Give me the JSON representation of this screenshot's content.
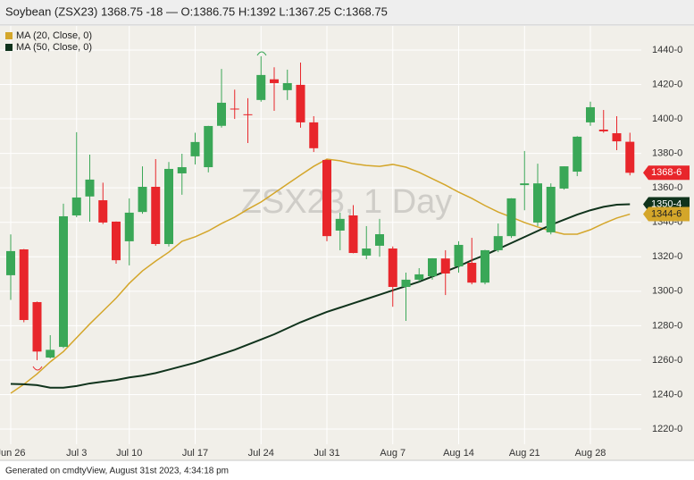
{
  "chart_data": {
    "type": "candlestick",
    "title": "Soybean (ZSX23) 1368.75 -18 — O:1386.75 H:1392 L:1367.25 C:1368.75",
    "watermark": "ZSX23, 1 Day",
    "footer": "Generated on cmdtyView, August 31st 2023, 4:34:18 pm",
    "categories": [
      "Jun 26",
      null,
      null,
      null,
      null,
      "Jul 3",
      null,
      null,
      null,
      "Jul 10",
      null,
      null,
      null,
      null,
      "Jul 17",
      null,
      null,
      null,
      null,
      "Jul 24",
      null,
      null,
      null,
      null,
      "Jul 31",
      null,
      null,
      null,
      null,
      "Aug 7",
      null,
      null,
      null,
      null,
      "Aug 14",
      null,
      null,
      null,
      null,
      "Aug 21",
      null,
      null,
      null,
      null,
      "Aug 28",
      null,
      null,
      null
    ],
    "open": [
      1309.3,
      1324.3,
      1293.7,
      1261.5,
      1267.7,
      1344,
      1355,
      1352.8,
      1340.4,
      1329,
      1346,
      1360.6,
      1327.4,
      1368.4,
      1378.3,
      1372,
      1396,
      1406,
      1402.7,
      1411,
      1423,
      1416.7,
      1419.8,
      1398,
      1376.2,
      1335.2,
      1344,
      1320.7,
      1326.4,
      1324.8,
      1302.5,
      1306.7,
      1308.7,
      1319,
      1314.4,
      1316.5,
      1305,
      1323.8,
      1332,
      1361.6,
      1339.9,
      1334.2,
      1359.6,
      1369.4,
      1398,
      1393.8,
      1391.7,
      1386.75
    ],
    "high": [
      1333,
      1324.5,
      1294,
      1274.5,
      1350.8,
      1392.3,
      1379.3,
      1363,
      1340.5,
      1353.9,
      1372.5,
      1376.7,
      1375,
      1379.8,
      1392,
      1396,
      1429,
      1417,
      1412,
      1436.4,
      1430,
      1428.6,
      1432.7,
      1401.6,
      1376.5,
      1345.6,
      1350,
      1337.8,
      1342,
      1326,
      1310.8,
      1313.4,
      1319.2,
      1323.8,
      1329,
      1331,
      1324,
      1339.3,
      1354,
      1381.4,
      1374,
      1362.6,
      1372.5,
      1390,
      1410,
      1405.2,
      1401.6,
      1392
    ],
    "low": [
      1295,
      1282,
      1260,
      1261,
      1267,
      1343,
      1340.4,
      1339,
      1316,
      1315,
      1345,
      1326.4,
      1326,
      1356,
      1373.6,
      1369,
      1395,
      1400,
      1386,
      1410,
      1404.7,
      1411,
      1394.9,
      1380.8,
      1329,
      1323.8,
      1322,
      1318.6,
      1320,
      1291,
      1282.8,
      1305.6,
      1306.7,
      1297.8,
      1310.8,
      1304,
      1304,
      1322.7,
      1331,
      1347,
      1337.8,
      1333,
      1359,
      1366.8,
      1396,
      1392,
      1381.9,
      1367.25
    ],
    "close": [
      1323.3,
      1283.3,
      1265,
      1266,
      1343.5,
      1354.4,
      1364.8,
      1339.9,
      1318,
      1345.6,
      1360.6,
      1327.4,
      1371,
      1372,
      1386.6,
      1395.9,
      1409.4,
      1405.5,
      1402.2,
      1425.5,
      1420.8,
      1420.8,
      1398,
      1383,
      1332,
      1342,
      1322.2,
      1324.8,
      1333.1,
      1302.5,
      1306.7,
      1309.8,
      1319.1,
      1310.3,
      1326.9,
      1305,
      1323.8,
      1332,
      1353.9,
      1362.6,
      1362.6,
      1360.6,
      1372.5,
      1389.7,
      1406.8,
      1392.8,
      1387,
      1368.75
    ],
    "up_color": "#3aa757",
    "down_color": "#e8262b",
    "close_label": "1368-6",
    "series": [
      {
        "name": "MA (20, Close, 0)",
        "color": "#d4a62a",
        "last_label": "1344-6",
        "values": [
          1240.8,
          1246,
          1252,
          1259,
          1265,
          1273,
          1281,
          1288.5,
          1296,
          1304.6,
          1311.8,
          1317.5,
          1322.7,
          1329,
          1331.6,
          1335,
          1339.3,
          1343,
          1347.6,
          1351.8,
          1357,
          1362.2,
          1367.4,
          1372.5,
          1376.7,
          1375.7,
          1374,
          1373,
          1372.5,
          1373.6,
          1372,
          1369,
          1365.3,
          1361.6,
          1357.5,
          1353.9,
          1349.7,
          1346,
          1343,
          1339.9,
          1337.3,
          1335,
          1333.1,
          1333.1,
          1335.7,
          1339.3,
          1342.5,
          1344.75
        ]
      },
      {
        "name": "MA (50, Close, 0)",
        "color": "#10331c",
        "last_label": "1350-4",
        "values": [
          1246.2,
          1246,
          1245.5,
          1244,
          1244,
          1245,
          1246.5,
          1247.5,
          1248.5,
          1250,
          1251,
          1252.5,
          1254.5,
          1256.5,
          1258.5,
          1261,
          1263.5,
          1266,
          1269,
          1272,
          1275,
          1278.5,
          1282,
          1285,
          1288,
          1290.5,
          1293,
          1295.5,
          1298,
          1300.5,
          1303,
          1305.5,
          1308.5,
          1311.5,
          1314.5,
          1318,
          1321,
          1324.5,
          1328,
          1331.5,
          1335,
          1338.5,
          1341.5,
          1344.5,
          1347,
          1349,
          1350.2,
          1350.5
        ]
      }
    ],
    "ylim": [
      1211.2,
      1454.5
    ],
    "yticks": [
      {
        "value": 1220,
        "label": "1220-0"
      },
      {
        "value": 1240,
        "label": "1240-0"
      },
      {
        "value": 1260,
        "label": "1260-0"
      },
      {
        "value": 1280,
        "label": "1280-0"
      },
      {
        "value": 1300,
        "label": "1300-0"
      },
      {
        "value": 1320,
        "label": "1320-0"
      },
      {
        "value": 1340,
        "label": "1340-0"
      },
      {
        "value": 1360,
        "label": "1360-0"
      },
      {
        "value": 1380,
        "label": "1380-0"
      },
      {
        "value": 1400,
        "label": "1400-0"
      },
      {
        "value": 1420,
        "label": "1420-0"
      },
      {
        "value": 1440,
        "label": "1440-0"
      }
    ],
    "grid": true,
    "legend": "top-left"
  }
}
